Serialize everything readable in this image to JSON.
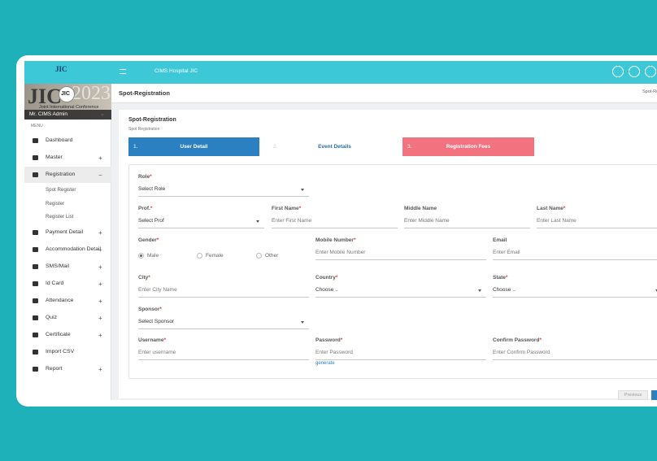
{
  "header": {
    "logo": "JIC",
    "hospital": "CIMS Hospital JIC"
  },
  "sidebar": {
    "banner_logo": "JIC",
    "banner_year": "2023",
    "banner_subtitle": "Joint International Conference",
    "user": "Mr. CIMS Admin",
    "menu_heading": "MENU",
    "items": [
      {
        "label": "Dashboard"
      },
      {
        "label": "Master",
        "toggle": "+"
      },
      {
        "label": "Registration",
        "toggle": "−",
        "children": [
          "Spot Register",
          "Register",
          "Register List"
        ]
      },
      {
        "label": "Payment Detail",
        "toggle": "+"
      },
      {
        "label": "Accommodation Detail",
        "toggle": "+"
      },
      {
        "label": "SMS/Mail",
        "toggle": "+"
      },
      {
        "label": "Id Card",
        "toggle": "+"
      },
      {
        "label": "Attendance",
        "toggle": "+"
      },
      {
        "label": "Quiz",
        "toggle": "+"
      },
      {
        "label": "Certificate",
        "toggle": "+"
      },
      {
        "label": "Import CSV"
      },
      {
        "label": "Report",
        "toggle": "+"
      }
    ]
  },
  "page": {
    "title": "Spot-Registration",
    "breadcrumb": "Spot-Registration"
  },
  "card": {
    "title": "Spot-Registration",
    "subtitle": "Spot Registration"
  },
  "steps": [
    {
      "number": "1.",
      "label": "User Detail"
    },
    {
      "number": "2.",
      "label": "Event Details"
    },
    {
      "number": "3.",
      "label": "Registration Fees"
    }
  ],
  "form": {
    "fields": [
      {
        "label": "Role",
        "mark": "*",
        "placeholder": "Select Role",
        "kind": "select"
      },
      {
        "label": "Prof.",
        "mark": "*",
        "placeholder": "Select Prof",
        "kind": "select"
      },
      {
        "label": "First Name",
        "mark": "*",
        "placeholder": "Enter First Name",
        "kind": "input"
      },
      {
        "label": "Middle Name",
        "placeholder": "Enter Middle Name",
        "kind": "input"
      },
      {
        "label": "Last Name",
        "mark": "*",
        "placeholder": "Enter Last Name",
        "kind": "input"
      },
      {
        "label": "Gender",
        "mark": "*",
        "options": [
          "Male",
          "Female",
          "Other"
        ],
        "kind": "radio"
      },
      {
        "label": "Mobile Number",
        "mark": "*",
        "placeholder": "Enter Mobile Number",
        "kind": "input"
      },
      {
        "label": "Email",
        "placeholder": "Enter Email",
        "kind": "input"
      },
      {
        "label": "City",
        "mark": "*",
        "placeholder": "Enter City Name",
        "kind": "input"
      },
      {
        "label": "Country",
        "mark": "*",
        "placeholder": "Choose ..",
        "kind": "select"
      },
      {
        "label": "State",
        "mark": "*",
        "placeholder": "Choose ..",
        "kind": "select"
      },
      {
        "label": "Sponsor",
        "mark": "*",
        "placeholder": "Select Sponsor",
        "kind": "select"
      },
      {
        "label": "Username",
        "mark": "*",
        "placeholder": "Enter username",
        "kind": "input"
      },
      {
        "label": "Password",
        "mark": "*",
        "placeholder": "Enter Password",
        "kind": "input",
        "link": "generate"
      },
      {
        "label": "Confirm Password",
        "mark": "*",
        "placeholder": "Enter Confirm Password",
        "kind": "input"
      }
    ]
  },
  "buttons": {
    "previous": "Previous"
  }
}
